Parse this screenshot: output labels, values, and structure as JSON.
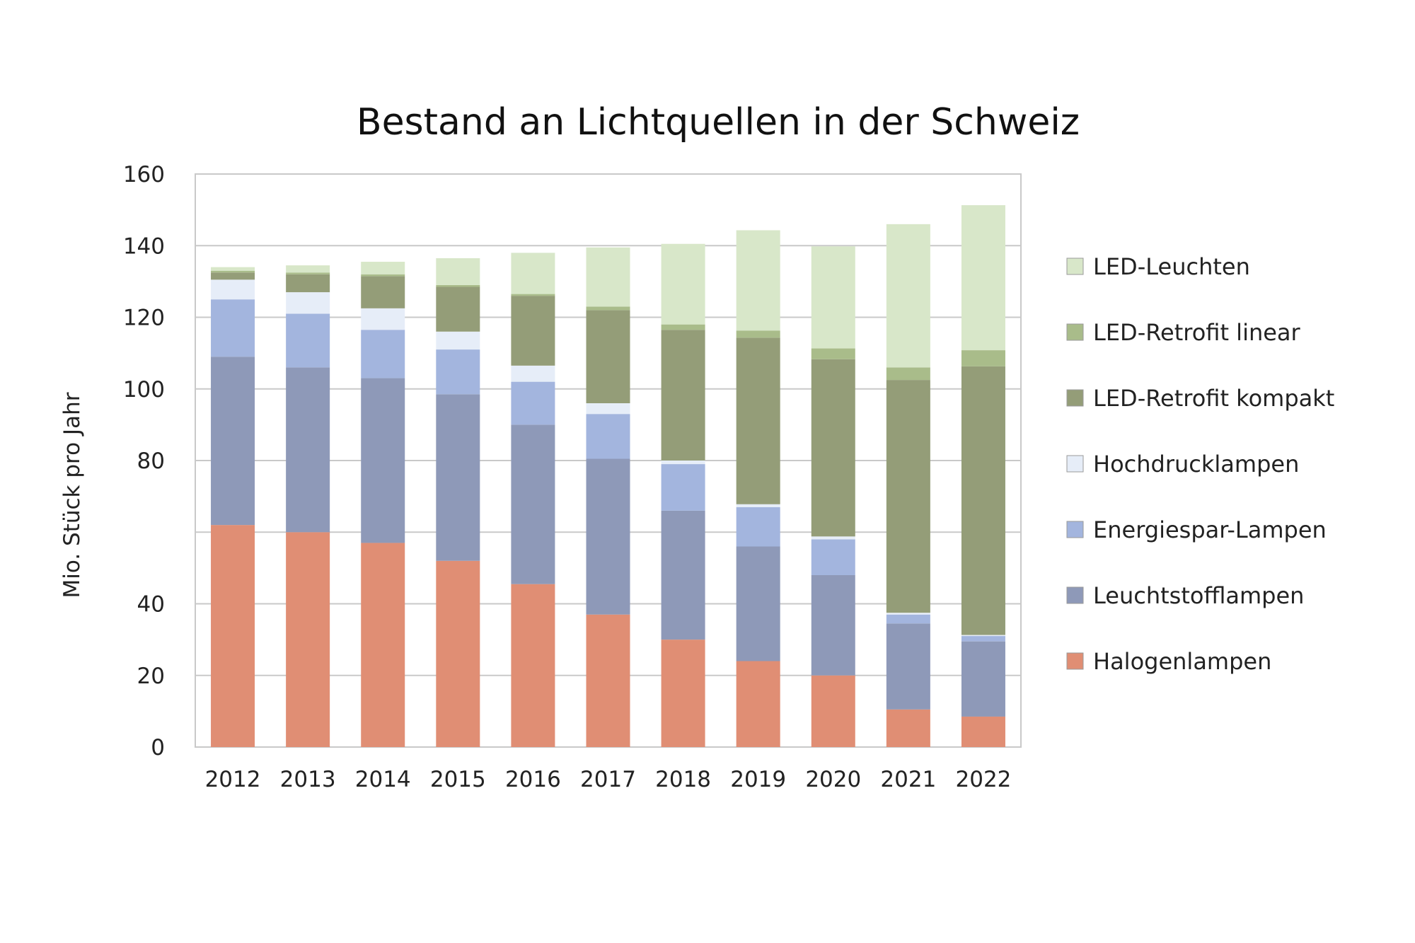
{
  "chart_data": {
    "type": "bar",
    "stacked": true,
    "title": "Bestand an Lichtquellen in der Schweiz",
    "xlabel": "",
    "ylabel": "Mio. Stück pro Jahr",
    "ylim": [
      0,
      160
    ],
    "yticks": [
      {
        "value": 0,
        "label": "0"
      },
      {
        "value": 20,
        "label": "20"
      },
      {
        "value": 40,
        "label": "40"
      },
      {
        "value": 80,
        "label": "80"
      },
      {
        "value": 100,
        "label": "100"
      },
      {
        "value": 120,
        "label": "120"
      },
      {
        "value": 140,
        "label": "140"
      },
      {
        "value": 160,
        "label": "160"
      }
    ],
    "gridlines": [
      20,
      40,
      60,
      80,
      100,
      120,
      140
    ],
    "grid": true,
    "legend_position": "right",
    "categories": [
      "2012",
      "2013",
      "2014",
      "2015",
      "2016",
      "2017",
      "2018",
      "2019",
      "2020",
      "2021",
      "2022"
    ],
    "series": [
      {
        "name": "Halogenlampen",
        "color": "#e08e74",
        "values": [
          62,
          60,
          57,
          52,
          45.5,
          37,
          30,
          24,
          20,
          10.5,
          8.5
        ]
      },
      {
        "name": "Leuchtstofflampen",
        "color": "#8e99b8",
        "values": [
          47,
          46,
          46,
          46.5,
          44.5,
          43.5,
          36,
          32,
          28,
          24,
          21
        ]
      },
      {
        "name": "Energiespar-Lampen",
        "color": "#a3b5de",
        "values": [
          16,
          15,
          13.5,
          12.5,
          12,
          12.5,
          13,
          11,
          10,
          2.5,
          1.5
        ]
      },
      {
        "name": "Hochdrucklampen",
        "color": "#e6edf8",
        "values": [
          5.5,
          6,
          6,
          5,
          4.5,
          3,
          1,
          0.8,
          0.8,
          0.5,
          0.3
        ]
      },
      {
        "name": "LED-Retrofit kompakt",
        "color": "#949d78",
        "values": [
          2,
          5,
          9,
          12.5,
          19.5,
          26,
          36.5,
          46.5,
          49.5,
          65,
          75
        ]
      },
      {
        "name": "LED-Retrofit linear",
        "color": "#a9bc8a",
        "values": [
          0.5,
          0.5,
          0.5,
          0.5,
          0.5,
          1,
          1.5,
          2,
          3,
          3.5,
          4.5
        ]
      },
      {
        "name": "LED-Leuchten",
        "color": "#d8e7c9",
        "values": [
          1,
          2,
          3.5,
          7.5,
          11.5,
          16.5,
          22.5,
          28,
          28.5,
          40,
          40.5
        ]
      }
    ],
    "legend_order": [
      "LED-Leuchten",
      "LED-Retrofit linear",
      "LED-Retrofit kompakt",
      "Hochdrucklampen",
      "Energiespar-Lampen",
      "Leuchtstofflampen",
      "Halogenlampen"
    ]
  }
}
